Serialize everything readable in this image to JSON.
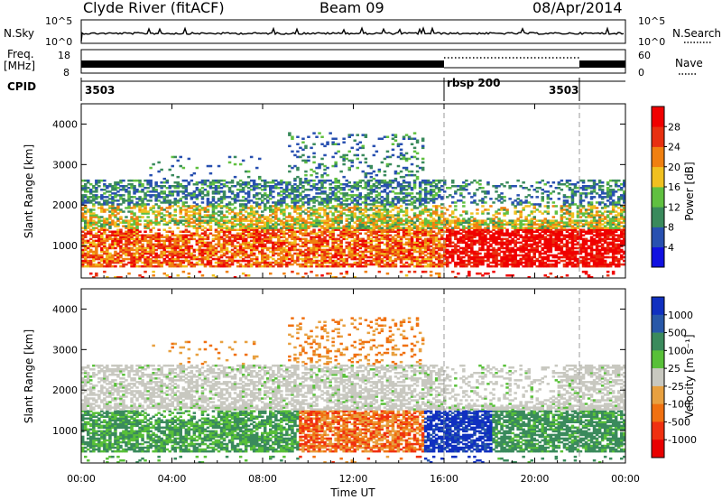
{
  "header": {
    "radar": "Clyde River (fitACF)",
    "beam": "Beam 09",
    "date": "08/Apr/2014"
  },
  "top_panels": {
    "nsky_label": "N.Sky",
    "nsky_ticks": [
      "10^5",
      "10^0"
    ],
    "nsearch_label": "N.Search",
    "nsearch_ticks": [
      "10^5",
      "10^0"
    ],
    "freq_label": "Freq.",
    "freq_unit": "[MHz]",
    "freq_ticks": [
      "18",
      "8"
    ],
    "nave_label": "Nave",
    "nave_ticks": [
      "60",
      "0"
    ],
    "cpid_label": "CPID",
    "cpid_segments": [
      {
        "label": "3503",
        "start_h": 0,
        "end_h": 16
      },
      {
        "label": "rbsp 200",
        "start_h": 16,
        "end_h": 21.8
      },
      {
        "label": "3503",
        "start_h": 21.8,
        "end_h": 24
      }
    ]
  },
  "chart_data": [
    {
      "type": "heatmap",
      "name": "power",
      "ylabel": "Slant Range [km]",
      "x_range_hours": [
        0,
        24
      ],
      "ylim": [
        200,
        4500
      ],
      "ytick_labels": [
        "1000",
        "2000",
        "3000",
        "4000"
      ],
      "colorbar_label": "Power [dB]",
      "colorbar_ticks": [
        "4",
        "8",
        "12",
        "16",
        "20",
        "24",
        "28"
      ],
      "colorbar_colors": [
        "#1010e0",
        "#2850b0",
        "#3a8a5c",
        "#60c040",
        "#f0c020",
        "#f08010",
        "#e83010",
        "#f00000"
      ],
      "mode_change_times_h": [
        16,
        21.8
      ]
    },
    {
      "type": "heatmap",
      "name": "velocity",
      "ylabel": "Slant Range [km]",
      "xlabel": "Time UT",
      "x_range_hours": [
        0,
        24
      ],
      "ylim": [
        200,
        4500
      ],
      "ytick_labels": [
        "1000",
        "2000",
        "3000",
        "4000"
      ],
      "xtick_labels": [
        "00:00",
        "04:00",
        "08:00",
        "12:00",
        "16:00",
        "20:00",
        "00:00"
      ],
      "colorbar_label": "Velocity [m s⁻¹]",
      "colorbar_ticks": [
        "1000",
        "500",
        "100",
        "25",
        "-25",
        "-100",
        "-500",
        "-1000"
      ],
      "colorbar_colors": [
        "#1030c0",
        "#2858a8",
        "#3a8a5c",
        "#58c038",
        "#c8c8c0",
        "#e8a040",
        "#f07010",
        "#f03010",
        "#e80000"
      ],
      "mode_change_times_h": [
        16,
        21.8
      ]
    }
  ]
}
